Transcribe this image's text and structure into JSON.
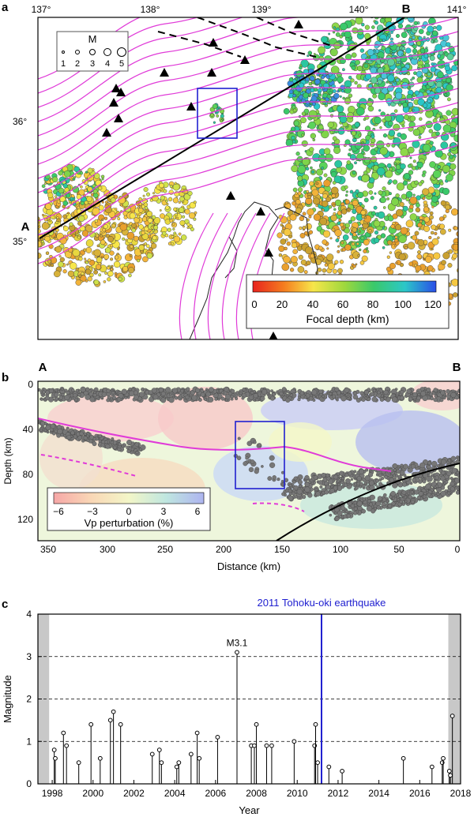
{
  "panel_a": {
    "label": "a",
    "lon_ticks": [
      "137°",
      "138°",
      "139°",
      "140°",
      "141°"
    ],
    "lat_ticks": [
      "36°",
      "35°"
    ],
    "point_a": "A",
    "point_b": "B",
    "mag_legend": {
      "title": "M",
      "labels": [
        "1",
        "2",
        "3",
        "4",
        "5"
      ]
    },
    "depth_colorbar": {
      "ticks": [
        "0",
        "20",
        "40",
        "60",
        "80",
        "100",
        "120"
      ],
      "label": "Focal depth (km)"
    }
  },
  "panel_b": {
    "label": "b",
    "point_a": "A",
    "point_b": "B",
    "ylabel": "Depth (km)",
    "xlabel": "Distance (km)",
    "yticks": [
      "0",
      "40",
      "80",
      "120"
    ],
    "xticks": [
      "350",
      "300",
      "250",
      "200",
      "150",
      "100",
      "50",
      "0"
    ],
    "vp_colorbar": {
      "ticks": [
        "−6",
        "−3",
        "0",
        "3",
        "6"
      ],
      "label": "Vp perturbation (%)"
    }
  },
  "panel_c": {
    "label": "c",
    "event_label": "2011 Tohoku-oki earthquake",
    "max_label": "M3.1"
  },
  "chart_data": {
    "type": "stem",
    "xlabel": "Year",
    "ylabel": "Magnitude",
    "xlim": [
      1997.3,
      2018.0
    ],
    "ylim": [
      0,
      4
    ],
    "xticks": [
      "1998",
      "2000",
      "2002",
      "2004",
      "2006",
      "2008",
      "2010",
      "2012",
      "2014",
      "2016",
      "2018"
    ],
    "yticks": [
      "0",
      "1",
      "2",
      "3",
      "4"
    ],
    "dashed_grid_y": [
      1,
      2,
      3
    ],
    "event_year": 2011.19,
    "shaded_periods": [
      [
        1997.3,
        1997.85
      ],
      [
        2017.4,
        2018.0
      ]
    ],
    "events": [
      {
        "t": 1998.1,
        "m": 0.8
      },
      {
        "t": 1998.15,
        "m": 0.6
      },
      {
        "t": 1998.55,
        "m": 1.2
      },
      {
        "t": 1998.7,
        "m": 0.9
      },
      {
        "t": 1999.3,
        "m": 0.5
      },
      {
        "t": 1999.9,
        "m": 1.4
      },
      {
        "t": 2000.35,
        "m": 0.6
      },
      {
        "t": 2000.85,
        "m": 1.5
      },
      {
        "t": 2001.0,
        "m": 1.7
      },
      {
        "t": 2001.35,
        "m": 1.4
      },
      {
        "t": 2002.9,
        "m": 0.7
      },
      {
        "t": 2003.25,
        "m": 0.8
      },
      {
        "t": 2003.35,
        "m": 0.5
      },
      {
        "t": 2004.1,
        "m": 0.4
      },
      {
        "t": 2004.2,
        "m": 0.5
      },
      {
        "t": 2004.8,
        "m": 0.7
      },
      {
        "t": 2005.1,
        "m": 1.2
      },
      {
        "t": 2005.2,
        "m": 0.6
      },
      {
        "t": 2006.1,
        "m": 1.1
      },
      {
        "t": 2007.05,
        "m": 3.1
      },
      {
        "t": 2007.75,
        "m": 0.9
      },
      {
        "t": 2007.9,
        "m": 0.9
      },
      {
        "t": 2008.0,
        "m": 1.4
      },
      {
        "t": 2008.5,
        "m": 0.9
      },
      {
        "t": 2008.75,
        "m": 0.9
      },
      {
        "t": 2009.85,
        "m": 1.0
      },
      {
        "t": 2010.85,
        "m": 0.9
      },
      {
        "t": 2010.9,
        "m": 1.4
      },
      {
        "t": 2011.0,
        "m": 0.5
      },
      {
        "t": 2011.55,
        "m": 0.4
      },
      {
        "t": 2012.2,
        "m": 0.3
      },
      {
        "t": 2015.2,
        "m": 0.6
      },
      {
        "t": 2016.6,
        "m": 0.4
      },
      {
        "t": 2017.1,
        "m": 0.5
      },
      {
        "t": 2017.15,
        "m": 0.6
      },
      {
        "t": 2017.45,
        "m": 0.3
      },
      {
        "t": 2017.5,
        "m": 0.2
      },
      {
        "t": 2017.6,
        "m": 1.6
      }
    ]
  }
}
